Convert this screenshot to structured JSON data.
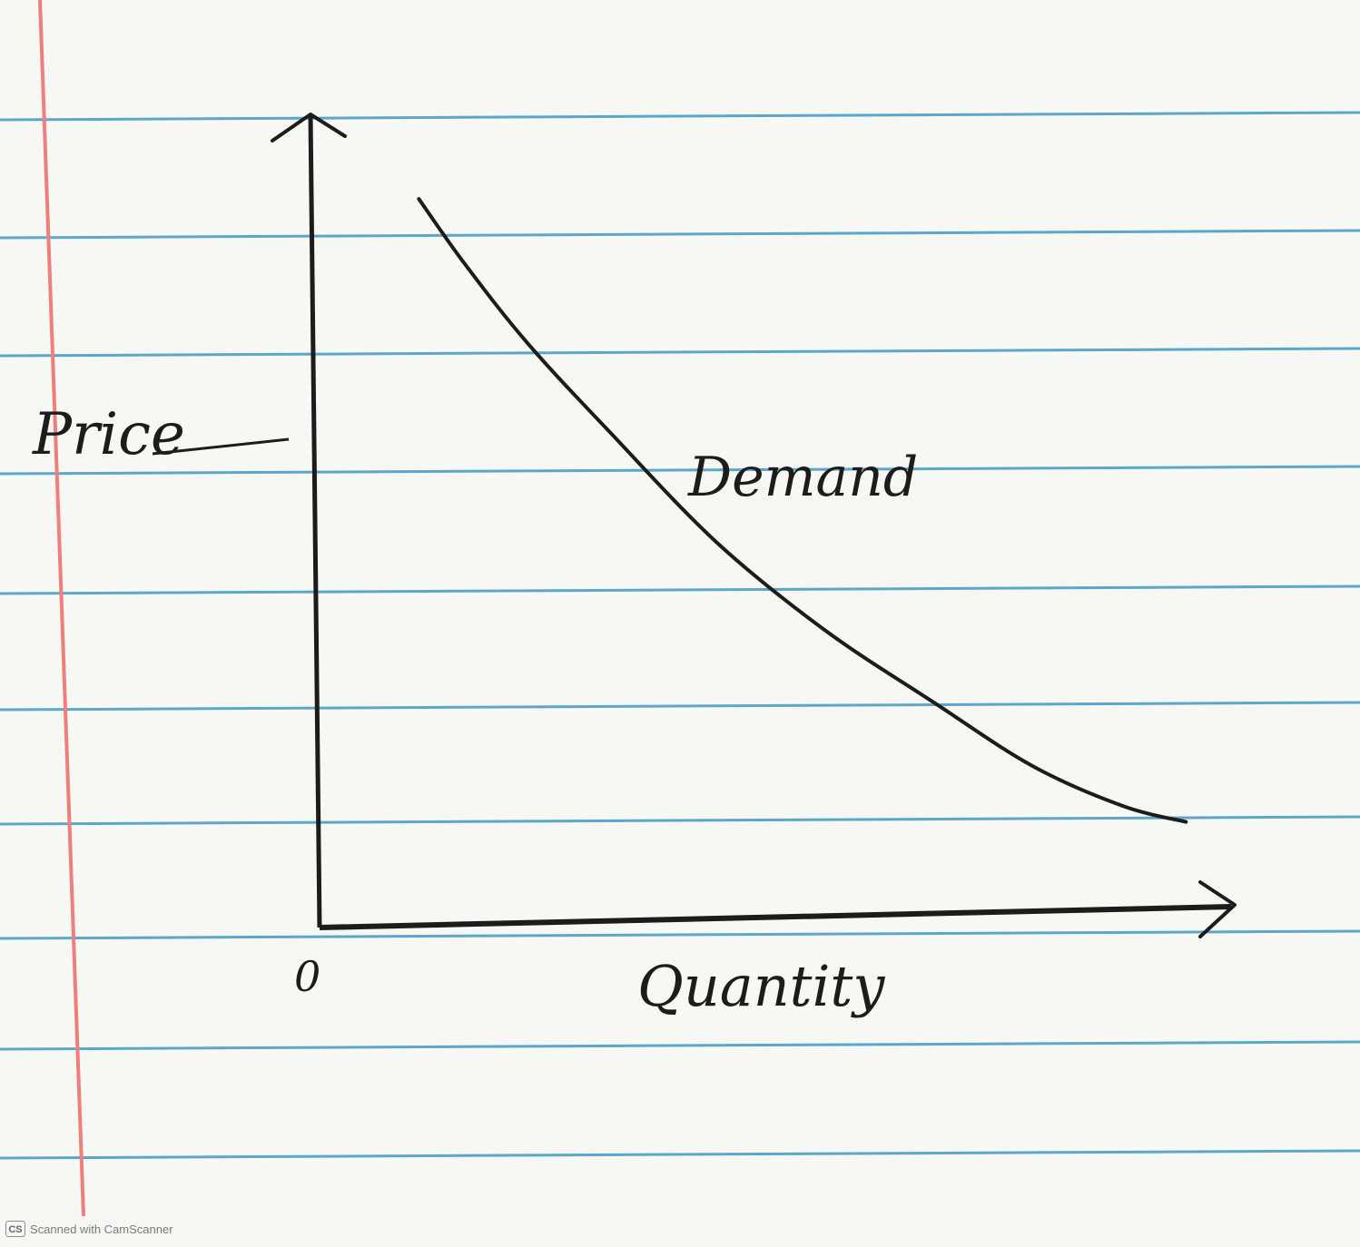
{
  "chart_data": {
    "type": "line",
    "title": "",
    "xlabel": "Quantity",
    "ylabel": "Price",
    "origin_label": "0",
    "xlim": [
      0,
      10
    ],
    "ylim": [
      0,
      10
    ],
    "grid": false,
    "series": [
      {
        "name": "Demand",
        "x": [
          1.1,
          1.6,
          2.3,
          3.2,
          4.4,
          5.6,
          6.8,
          7.9,
          8.9,
          9.6
        ],
        "y": [
          9.1,
          8.3,
          7.3,
          6.2,
          4.8,
          3.7,
          2.8,
          2.0,
          1.5,
          1.3
        ]
      }
    ]
  },
  "style": {
    "paper": "#f7f7f4",
    "rule_line": "#5aa7c9",
    "margin_line": "#ef7f7f",
    "ink": "#1c1c1c"
  },
  "footer": {
    "logo": "CS",
    "text": "Scanned with CamScanner"
  }
}
